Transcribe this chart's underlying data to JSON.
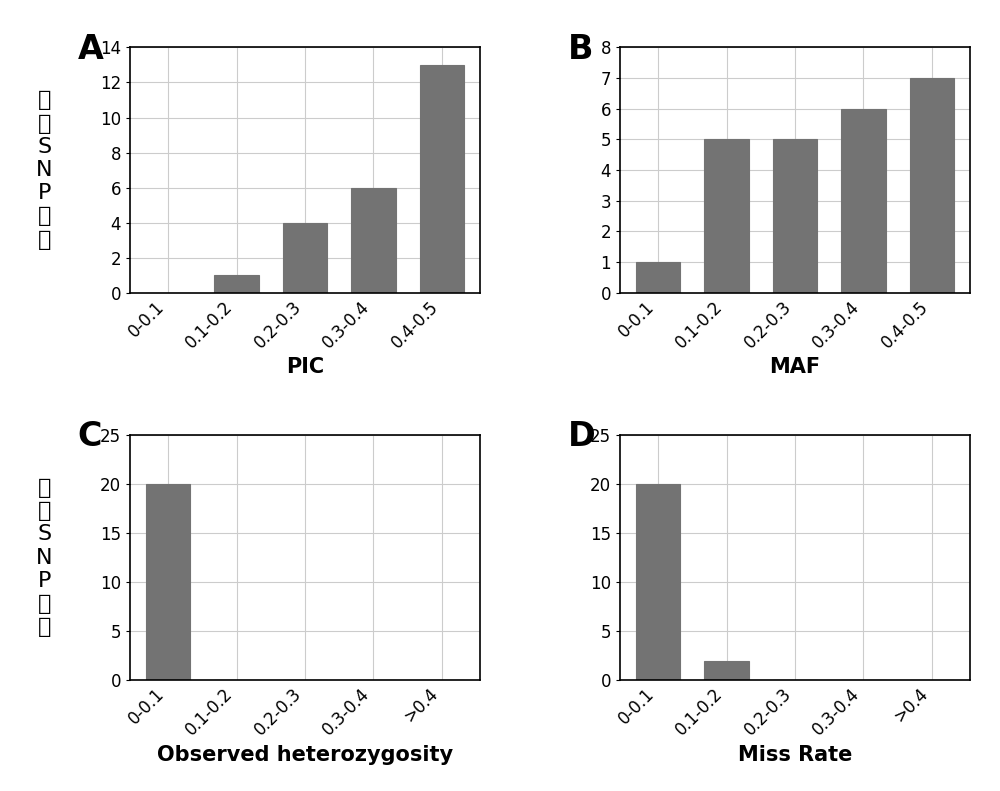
{
  "panel_A": {
    "categories": [
      "0-0.1",
      "0.1-0.2",
      "0.2-0.3",
      "0.3-0.4",
      "0.4-0.5"
    ],
    "values": [
      0,
      1,
      4,
      6,
      13
    ],
    "xlabel": "PIC",
    "ylim": [
      0,
      14
    ],
    "yticks": [
      0,
      2,
      4,
      6,
      8,
      10,
      12,
      14
    ],
    "label": "A"
  },
  "panel_B": {
    "categories": [
      "0-0.1",
      "0.1-0.2",
      "0.2-0.3",
      "0.3-0.4",
      "0.4-0.5"
    ],
    "values": [
      1,
      5,
      5,
      6,
      7
    ],
    "xlabel": "MAF",
    "ylim": [
      0,
      8
    ],
    "yticks": [
      0,
      1,
      2,
      3,
      4,
      5,
      6,
      7,
      8
    ],
    "label": "B"
  },
  "panel_C": {
    "categories": [
      "0-0.1",
      "0.1-0.2",
      "0.2-0.3",
      "0.3-0.4",
      ">0.4"
    ],
    "values": [
      20,
      0,
      0,
      0,
      0
    ],
    "xlabel": "Observed heterozygosity",
    "ylim": [
      0,
      25
    ],
    "yticks": [
      0,
      5,
      10,
      15,
      20,
      25
    ],
    "label": "C"
  },
  "panel_D": {
    "categories": [
      "0-0.1",
      "0.1-0.2",
      "0.2-0.3",
      "0.3-0.4",
      ">0.4"
    ],
    "values": [
      20,
      2,
      0,
      0,
      0
    ],
    "xlabel": "Miss Rate",
    "ylim": [
      0,
      25
    ],
    "yticks": [
      0,
      5,
      10,
      15,
      20,
      25
    ],
    "label": "D"
  },
  "ylabel_chars": [
    "核",
    "心",
    "S",
    "N",
    "P",
    "个",
    "数"
  ],
  "bar_color": "#737373",
  "bar_edgecolor": "#737373",
  "background_color": "#ffffff",
  "grid_color": "#cccccc",
  "tick_rotation": 45,
  "panel_label_fontsize": 24,
  "tick_fontsize": 12,
  "xlabel_fontsize": 15,
  "ylabel_fontsize": 16
}
